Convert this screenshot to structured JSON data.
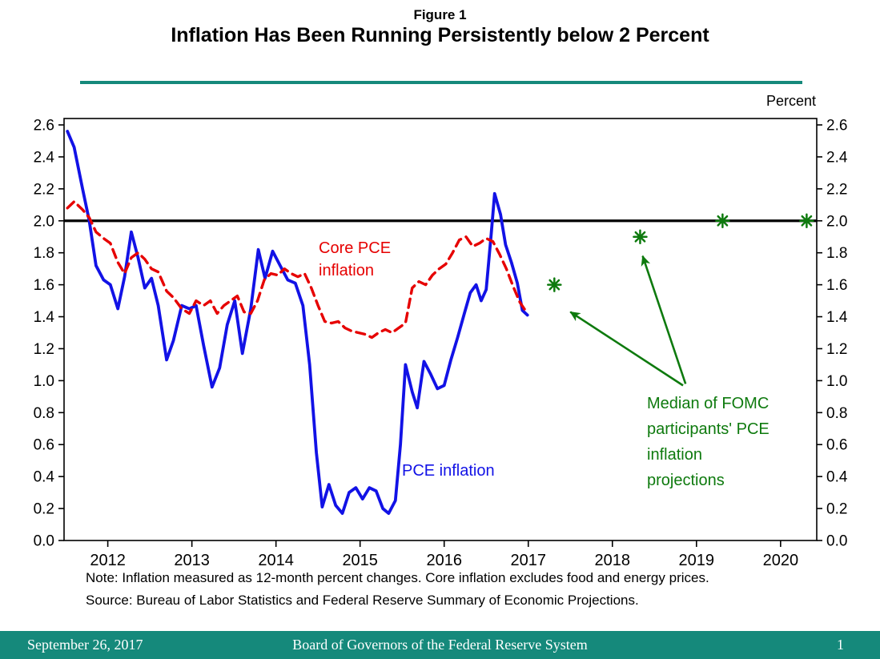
{
  "slide": {
    "figure_label": "Figure 1",
    "title": "Inflation Has Been Running Persistently below 2 Percent",
    "percent_label": "Percent",
    "note": "Note: Inflation measured as 12-month percent changes. Core inflation excludes food and energy prices.",
    "source": "Source: Bureau of Labor Statistics and Federal Reserve Summary of Economic Projections.",
    "footer": {
      "date": "September 26, 2017",
      "organization": "Board of Governors of the Federal Reserve System",
      "page_number": "1"
    }
  },
  "annotations": {
    "core_pce_label": "Core PCE\ninflation",
    "pce_label": "PCE inflation",
    "fomc_label": "Median of FOMC\nparticipants' PCE\ninflation\nprojections"
  },
  "colors": {
    "pce_line": "#1212E6",
    "core_pce_line": "#E60000",
    "projections_green": "#0E7A0E",
    "target_line": "#000000",
    "accent_teal": "#15897B",
    "axis": "#000000"
  },
  "chart_data": {
    "type": "line",
    "title": "Inflation Has Been Running Persistently below 2 Percent",
    "ylabel": "Percent",
    "ylim": [
      0.0,
      2.6
    ],
    "ytick_step": 0.2,
    "xlim": [
      2011.48,
      2020.43
    ],
    "xticks": [
      2012,
      2013,
      2014,
      2015,
      2016,
      2017,
      2018,
      2019,
      2020
    ],
    "grid": false,
    "legend_position": "in-plot text annotations",
    "reference_line": {
      "value": 2.0,
      "color": "#000000"
    },
    "series": [
      {
        "name": "PCE inflation",
        "type": "line",
        "style": "solid",
        "color": "#1212E6",
        "points": [
          [
            2011.52,
            2.56
          ],
          [
            2011.6,
            2.46
          ],
          [
            2011.7,
            2.2
          ],
          [
            2011.78,
            2.0
          ],
          [
            2011.86,
            1.72
          ],
          [
            2011.95,
            1.63
          ],
          [
            2012.03,
            1.6
          ],
          [
            2012.12,
            1.45
          ],
          [
            2012.2,
            1.65
          ],
          [
            2012.28,
            1.93
          ],
          [
            2012.36,
            1.77
          ],
          [
            2012.44,
            1.58
          ],
          [
            2012.52,
            1.64
          ],
          [
            2012.6,
            1.47
          ],
          [
            2012.7,
            1.13
          ],
          [
            2012.78,
            1.25
          ],
          [
            2012.88,
            1.47
          ],
          [
            2012.97,
            1.45
          ],
          [
            2013.05,
            1.47
          ],
          [
            2013.14,
            1.22
          ],
          [
            2013.24,
            0.96
          ],
          [
            2013.33,
            1.08
          ],
          [
            2013.42,
            1.35
          ],
          [
            2013.51,
            1.5
          ],
          [
            2013.6,
            1.17
          ],
          [
            2013.7,
            1.45
          ],
          [
            2013.79,
            1.82
          ],
          [
            2013.87,
            1.64
          ],
          [
            2013.96,
            1.81
          ],
          [
            2014.05,
            1.72
          ],
          [
            2014.14,
            1.63
          ],
          [
            2014.23,
            1.61
          ],
          [
            2014.32,
            1.47
          ],
          [
            2014.4,
            1.1
          ],
          [
            2014.48,
            0.55
          ],
          [
            2014.55,
            0.21
          ],
          [
            2014.63,
            0.35
          ],
          [
            2014.71,
            0.22
          ],
          [
            2014.79,
            0.17
          ],
          [
            2014.87,
            0.3
          ],
          [
            2014.95,
            0.33
          ],
          [
            2015.03,
            0.26
          ],
          [
            2015.11,
            0.33
          ],
          [
            2015.19,
            0.31
          ],
          [
            2015.27,
            0.2
          ],
          [
            2015.34,
            0.17
          ],
          [
            2015.42,
            0.25
          ],
          [
            2015.48,
            0.6
          ],
          [
            2015.54,
            1.1
          ],
          [
            2015.62,
            0.93
          ],
          [
            2015.68,
            0.83
          ],
          [
            2015.76,
            1.12
          ],
          [
            2015.84,
            1.04
          ],
          [
            2015.92,
            0.95
          ],
          [
            2016.0,
            0.97
          ],
          [
            2016.08,
            1.13
          ],
          [
            2016.16,
            1.27
          ],
          [
            2016.24,
            1.42
          ],
          [
            2016.31,
            1.55
          ],
          [
            2016.38,
            1.6
          ],
          [
            2016.44,
            1.5
          ],
          [
            2016.5,
            1.57
          ],
          [
            2016.56,
            1.92
          ],
          [
            2016.6,
            2.17
          ],
          [
            2016.67,
            2.04
          ],
          [
            2016.73,
            1.85
          ],
          [
            2016.8,
            1.74
          ],
          [
            2016.87,
            1.61
          ],
          [
            2016.93,
            1.44
          ],
          [
            2016.99,
            1.41
          ]
        ]
      },
      {
        "name": "Core PCE inflation",
        "type": "line",
        "style": "dashed",
        "color": "#E60000",
        "points": [
          [
            2011.52,
            2.08
          ],
          [
            2011.6,
            2.12
          ],
          [
            2011.7,
            2.07
          ],
          [
            2011.78,
            2.02
          ],
          [
            2011.86,
            1.93
          ],
          [
            2011.95,
            1.89
          ],
          [
            2012.03,
            1.86
          ],
          [
            2012.12,
            1.74
          ],
          [
            2012.2,
            1.67
          ],
          [
            2012.28,
            1.77
          ],
          [
            2012.36,
            1.8
          ],
          [
            2012.44,
            1.76
          ],
          [
            2012.52,
            1.7
          ],
          [
            2012.6,
            1.68
          ],
          [
            2012.7,
            1.56
          ],
          [
            2012.78,
            1.52
          ],
          [
            2012.88,
            1.45
          ],
          [
            2012.97,
            1.42
          ],
          [
            2013.05,
            1.5
          ],
          [
            2013.14,
            1.47
          ],
          [
            2013.22,
            1.5
          ],
          [
            2013.3,
            1.42
          ],
          [
            2013.38,
            1.47
          ],
          [
            2013.46,
            1.5
          ],
          [
            2013.54,
            1.53
          ],
          [
            2013.62,
            1.43
          ],
          [
            2013.7,
            1.42
          ],
          [
            2013.78,
            1.5
          ],
          [
            2013.86,
            1.63
          ],
          [
            2013.94,
            1.67
          ],
          [
            2014.02,
            1.66
          ],
          [
            2014.1,
            1.7
          ],
          [
            2014.18,
            1.67
          ],
          [
            2014.26,
            1.65
          ],
          [
            2014.34,
            1.67
          ],
          [
            2014.42,
            1.58
          ],
          [
            2014.5,
            1.47
          ],
          [
            2014.58,
            1.37
          ],
          [
            2014.66,
            1.36
          ],
          [
            2014.74,
            1.37
          ],
          [
            2014.82,
            1.33
          ],
          [
            2014.9,
            1.31
          ],
          [
            2014.98,
            1.3
          ],
          [
            2015.06,
            1.29
          ],
          [
            2015.14,
            1.27
          ],
          [
            2015.22,
            1.3
          ],
          [
            2015.3,
            1.32
          ],
          [
            2015.38,
            1.3
          ],
          [
            2015.46,
            1.33
          ],
          [
            2015.54,
            1.36
          ],
          [
            2015.62,
            1.58
          ],
          [
            2015.7,
            1.62
          ],
          [
            2015.78,
            1.6
          ],
          [
            2015.86,
            1.66
          ],
          [
            2015.94,
            1.7
          ],
          [
            2016.02,
            1.73
          ],
          [
            2016.1,
            1.8
          ],
          [
            2016.18,
            1.88
          ],
          [
            2016.26,
            1.9
          ],
          [
            2016.34,
            1.84
          ],
          [
            2016.42,
            1.86
          ],
          [
            2016.5,
            1.89
          ],
          [
            2016.58,
            1.87
          ],
          [
            2016.66,
            1.79
          ],
          [
            2016.74,
            1.7
          ],
          [
            2016.82,
            1.59
          ],
          [
            2016.9,
            1.49
          ],
          [
            2016.99,
            1.42
          ]
        ]
      },
      {
        "name": "Median of FOMC participants' PCE inflation projections",
        "type": "markers",
        "marker": "asterisk",
        "color": "#0E7A0E",
        "points": [
          [
            2017.31,
            1.6
          ],
          [
            2018.33,
            1.9
          ],
          [
            2019.31,
            2.0
          ],
          [
            2020.31,
            2.0
          ]
        ]
      }
    ],
    "annotation_arrows": [
      {
        "from": [
          2018.84,
          0.97
        ],
        "to": [
          2017.5,
          1.43
        ]
      },
      {
        "from": [
          2018.87,
          0.98
        ],
        "to": [
          2018.36,
          1.78
        ]
      }
    ]
  }
}
